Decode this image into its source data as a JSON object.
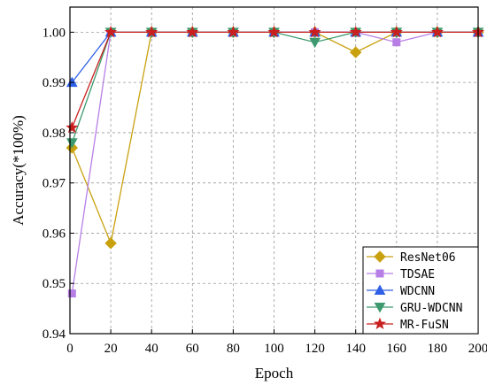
{
  "chart_data": {
    "type": "line",
    "title": "",
    "xlabel": "Epoch",
    "ylabel": "Accuracy(*100%)",
    "xlim": [
      0,
      200
    ],
    "ylim": [
      0.94,
      1.005
    ],
    "xticks": [
      0,
      20,
      40,
      60,
      80,
      100,
      120,
      140,
      160,
      180,
      200
    ],
    "yticks": [
      0.94,
      0.95,
      0.96,
      0.97,
      0.98,
      0.99,
      1.0
    ],
    "ytick_labels": [
      "0.94",
      "0.95",
      "0.96",
      "0.97",
      "0.98",
      "0.99",
      "1.00"
    ],
    "grid": true,
    "legend_position": "bottom-right",
    "x": [
      1,
      20,
      40,
      60,
      80,
      100,
      120,
      140,
      160,
      180,
      200
    ],
    "series": [
      {
        "name": "ResNet06",
        "color": "#C9A10F",
        "marker": "diamond",
        "values": [
          0.977,
          0.958,
          1.0,
          1.0,
          1.0,
          1.0,
          1.0,
          0.996,
          1.0,
          1.0,
          1.0
        ]
      },
      {
        "name": "TDSAE",
        "color": "#B77FE6",
        "marker": "square",
        "values": [
          0.948,
          1.0,
          1.0,
          1.0,
          1.0,
          1.0,
          1.0,
          1.0,
          0.998,
          1.0,
          1.0
        ]
      },
      {
        "name": "WDCNN",
        "color": "#2E5FE6",
        "marker": "triangle-up",
        "values": [
          0.99,
          1.0,
          1.0,
          1.0,
          1.0,
          1.0,
          1.0,
          1.0,
          1.0,
          1.0,
          1.0
        ]
      },
      {
        "name": "GRU-WDCNN",
        "color": "#3E9A6E",
        "marker": "triangle-down",
        "values": [
          0.978,
          1.0,
          1.0,
          1.0,
          1.0,
          1.0,
          0.998,
          1.0,
          1.0,
          1.0,
          1.0
        ]
      },
      {
        "name": "MR-FuSN",
        "color": "#C8201E",
        "marker": "star",
        "values": [
          0.981,
          1.0,
          1.0,
          1.0,
          1.0,
          1.0,
          1.0,
          1.0,
          1.0,
          1.0,
          1.0
        ]
      }
    ]
  }
}
